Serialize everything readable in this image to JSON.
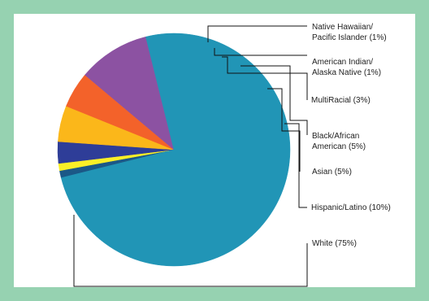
{
  "chart_data": {
    "type": "pie",
    "title": "",
    "slices": [
      {
        "lines": [
          "Native Hawaiian/",
          "Pacific Islander (1%)"
        ],
        "value": 1,
        "color": "#1b5887"
      },
      {
        "lines": [
          "American Indian/",
          "Alaska Native (1%)"
        ],
        "value": 1,
        "color": "#fbef27"
      },
      {
        "lines": [
          "MultiRacial (3%)"
        ],
        "value": 3,
        "color": "#2e3d98"
      },
      {
        "lines": [
          "Black/African",
          "American (5%)"
        ],
        "value": 5,
        "color": "#fbb71a"
      },
      {
        "lines": [
          "Asian (5%)"
        ],
        "value": 5,
        "color": "#f3622a"
      },
      {
        "lines": [
          "Hispanic/Latino (10%)"
        ],
        "value": 10,
        "color": "#8c52a2"
      },
      {
        "lines": [
          "White (75%)"
        ],
        "value": 75,
        "color": "#2195b6"
      }
    ],
    "legend": "labels-right-with-leader-lines"
  }
}
